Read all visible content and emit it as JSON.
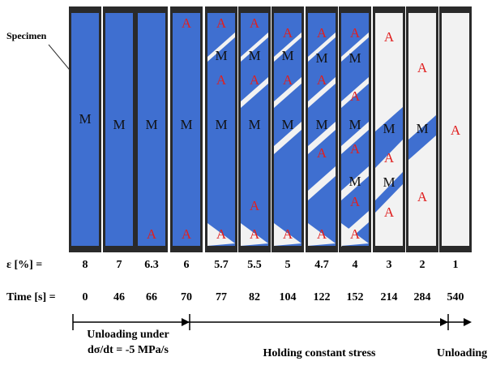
{
  "specimen_label": "Specimen",
  "panels": [
    {
      "labels": [
        "M"
      ]
    },
    {
      "labels": [
        "M"
      ]
    },
    {
      "labels": [
        "M",
        "A"
      ]
    },
    {
      "labels": [
        "A",
        "M",
        "A"
      ]
    },
    {
      "labels": [
        "A",
        "M",
        "A",
        "M",
        "A"
      ]
    },
    {
      "labels": [
        "A",
        "M",
        "A",
        "M",
        "A",
        "A"
      ]
    },
    {
      "labels": [
        "A",
        "M",
        "A",
        "M",
        "A"
      ]
    },
    {
      "labels": [
        "A",
        "M",
        "A",
        "M",
        "A",
        "A"
      ]
    },
    {
      "labels": [
        "A",
        "M",
        "A",
        "M",
        "A",
        "M",
        "A",
        "A"
      ]
    },
    {
      "labels": [
        "A",
        "M",
        "A",
        "M",
        "A"
      ]
    },
    {
      "labels": [
        "A",
        "M",
        "A"
      ]
    },
    {
      "labels": [
        "A"
      ]
    }
  ],
  "strain_label": "ε [%] =",
  "strain": [
    "8",
    "7",
    "6.3",
    "6",
    "5.7",
    "5.5",
    "5",
    "4.7",
    "4",
    "3",
    "2",
    "1"
  ],
  "time_label": "Time [s] =",
  "time": [
    "0",
    "46",
    "66",
    "70",
    "77",
    "82",
    "104",
    "122",
    "152",
    "214",
    "284",
    "540"
  ],
  "phases": {
    "unloading_under_line1": "Unloading under",
    "unloading_under_line2": "dσ/dt = -5 MPa/s",
    "holding": "Holding constant stress",
    "unloading": "Unloading"
  }
}
